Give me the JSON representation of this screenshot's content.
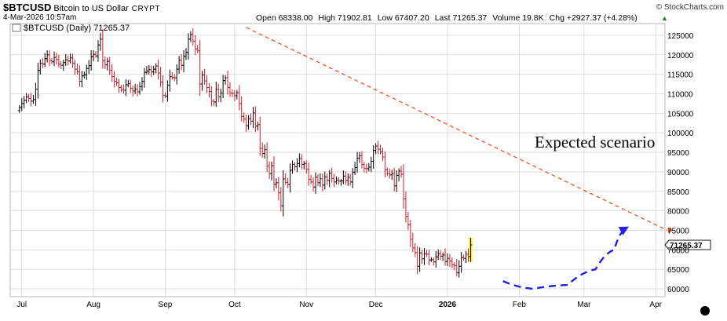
{
  "header": {
    "symbol": "$BTCUSD",
    "name": "Bitcoin to US Dollar",
    "exchange": "CRYPT",
    "datetime": "4-Mar-2026 10:57am",
    "brand": "© StockCharts.com",
    "open": "Open 68338.00",
    "high": "High 71902.81",
    "low": "Low 67407.20",
    "last": "Last 71265.37",
    "volume": "Volume 19.8K",
    "change": "Chg +2927.37 (+4.28%)",
    "change_icon": "up-triangle-icon"
  },
  "chart_data": {
    "type": "ohlc",
    "legend": "$BTCUSD (Daily) 71265.37",
    "annotation": "Expected scenario",
    "last_price_label": "71265.37",
    "ylim": [
      58000,
      128000
    ],
    "y_ticks": [
      60000,
      65000,
      70000,
      75000,
      80000,
      85000,
      90000,
      95000,
      100000,
      105000,
      110000,
      115000,
      120000,
      125000
    ],
    "y_tick_labels": [
      "60000",
      "65000",
      "70000",
      "75000",
      "80000",
      "85000",
      "90000",
      "95000",
      "100000",
      "105000",
      "110000",
      "115000",
      "120000",
      "125000"
    ],
    "x_labels": [
      "Jul",
      "Aug",
      "Sep",
      "Oct",
      "Nov",
      "Dec",
      "2026",
      "Feb",
      "Mar",
      "Apr"
    ],
    "x_label_dates": [
      "2025-07-01",
      "2025-08-01",
      "2025-09-01",
      "2025-10-01",
      "2025-11-01",
      "2025-12-01",
      "2026-01-01",
      "2026-02-01",
      "2026-03-01",
      "2026-04-01"
    ],
    "grid": true,
    "close_series": {
      "start_date": "2025-06-30",
      "values": [
        106500,
        107500,
        108300,
        109200,
        108800,
        108100,
        108500,
        111200,
        116000,
        117800,
        117600,
        119000,
        120000,
        118500,
        118200,
        119300,
        118800,
        117600,
        117300,
        118000,
        118700,
        118400,
        119200,
        117800,
        116300,
        115600,
        113200,
        114600,
        114900,
        116500,
        117200,
        119500,
        120100,
        119700,
        122500,
        124000,
        118400,
        117400,
        118300,
        116000,
        114400,
        113200,
        112800,
        111600,
        111100,
        110900,
        112300,
        112600,
        111400,
        110700,
        111200,
        110500,
        111800,
        113200,
        115500,
        115800,
        116200,
        115600,
        116300,
        117100,
        115300,
        113000,
        109600,
        109400,
        112200,
        114400,
        114200,
        114100,
        116300,
        118600,
        117300,
        119600,
        120600,
        124000,
        125200,
        123500,
        121500,
        121000,
        112500,
        114800,
        113300,
        111600,
        110600,
        108100,
        107900,
        111100,
        109200,
        110200,
        113400,
        114100,
        111600,
        110200,
        110100,
        109500,
        110300,
        107500,
        104200,
        103500,
        101800,
        103600,
        103000,
        105100,
        101700,
        102100,
        96000,
        94700,
        95700,
        91500,
        89500,
        91600,
        86800,
        87200,
        84600,
        81300,
        88200,
        87300,
        86700,
        90400,
        91900,
        91300,
        92100,
        93400,
        91900,
        92100,
        90600,
        88100,
        87400,
        86100,
        88600,
        87200,
        88200,
        86600,
        88700,
        87800,
        89600,
        88300,
        87400,
        87900,
        87600,
        87700,
        88900,
        87800,
        88600,
        87400,
        89900,
        91100,
        93500,
        94100,
        91900,
        90900,
        90800,
        91200,
        92700,
        95500,
        96600,
        95800,
        95100,
        93800,
        90500,
        89600,
        89200,
        89500,
        86400,
        89100,
        90200,
        89400,
        83100,
        78600,
        76400,
        72700,
        70500,
        69300,
        65800,
        69200,
        67700,
        69000,
        68900,
        67400,
        67500,
        66900,
        68200,
        69000,
        68400,
        68700,
        67000,
        67800,
        67100,
        66200,
        65900,
        64100,
        65800,
        68000,
        67800,
        68900,
        68300,
        71265
      ]
    },
    "trendline": {
      "points": [
        {
          "date": "2025-10-06",
          "value": 127000
        },
        {
          "date": "2026-04-06",
          "value": 75000
        }
      ]
    },
    "expected_path": {
      "points": [
        {
          "date": "2026-01-25",
          "value": 62000
        },
        {
          "date": "2026-02-07",
          "value": 60000
        },
        {
          "date": "2026-02-22",
          "value": 61000
        },
        {
          "date": "2026-03-06",
          "value": 65000
        },
        {
          "date": "2026-03-14",
          "value": 70000
        },
        {
          "date": "2026-03-19",
          "value": 75500
        }
      ]
    },
    "colors": {
      "up_bar": "#000000",
      "down_bar": "#cc1f2d",
      "trendline": "#f0522c",
      "expected_path": "#2020e8",
      "last_bar_highlight": "#ffee00",
      "grid": "#d6d6d6"
    }
  }
}
